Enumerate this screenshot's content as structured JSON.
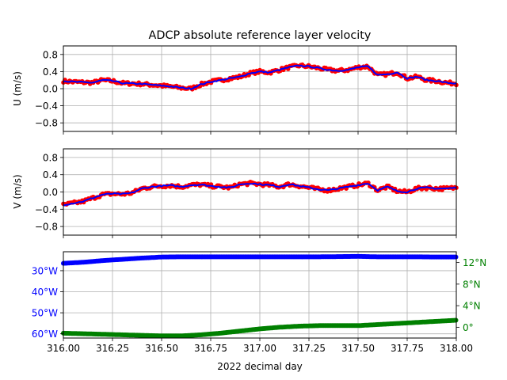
{
  "title": "ADCP absolute reference layer velocity",
  "colors": {
    "u_points": "#ff0000",
    "u_line": "#0000ff",
    "lon": "#0000ff",
    "lat": "#008000",
    "grid": "#b0b0b0"
  },
  "chart_data": [
    {
      "type": "line",
      "title": "ADCP absolute reference layer velocity",
      "ylabel": "U (m/s)",
      "xlabel": "",
      "xlim": [
        316.0,
        318.0
      ],
      "ylim": [
        -1.0,
        1.0
      ],
      "grid": true,
      "yticks": [
        -0.8,
        -0.4,
        0.0,
        0.4,
        0.8
      ],
      "ytick_labels": [
        "−0.8",
        "−0.4",
        "0.0",
        "0.4",
        "0.8"
      ],
      "x": [
        316.0,
        316.05,
        316.1,
        316.15,
        316.2,
        316.25,
        316.3,
        316.35,
        316.4,
        316.45,
        316.5,
        316.55,
        316.6,
        316.65,
        316.7,
        316.75,
        316.8,
        316.85,
        316.9,
        316.95,
        317.0,
        317.05,
        317.1,
        317.15,
        317.2,
        317.25,
        317.3,
        317.35,
        317.4,
        317.45,
        317.5,
        317.55,
        317.6,
        317.65,
        317.7,
        317.75,
        317.8,
        317.85,
        317.9,
        317.95,
        318.0
      ],
      "series": [
        {
          "values": [
            0.18,
            0.16,
            0.15,
            0.14,
            0.2,
            0.18,
            0.13,
            0.12,
            0.11,
            0.09,
            0.07,
            0.05,
            0.02,
            0.0,
            0.1,
            0.16,
            0.2,
            0.24,
            0.28,
            0.36,
            0.4,
            0.38,
            0.44,
            0.5,
            0.54,
            0.52,
            0.48,
            0.44,
            0.42,
            0.44,
            0.5,
            0.52,
            0.32,
            0.34,
            0.38,
            0.24,
            0.28,
            0.2,
            0.18,
            0.14,
            0.12
          ]
        }
      ]
    },
    {
      "type": "line",
      "ylabel": "V (m/s)",
      "xlabel": "",
      "xlim": [
        316.0,
        318.0
      ],
      "ylim": [
        -1.0,
        1.0
      ],
      "grid": true,
      "yticks": [
        -0.8,
        -0.4,
        0.0,
        0.4,
        0.8
      ],
      "ytick_labels": [
        "−0.8",
        "−0.4",
        "0.0",
        "0.4",
        "0.8"
      ],
      "x": [
        316.0,
        316.05,
        316.1,
        316.15,
        316.2,
        316.25,
        316.3,
        316.35,
        316.4,
        316.45,
        316.5,
        316.55,
        316.6,
        316.65,
        316.7,
        316.75,
        316.8,
        316.85,
        316.9,
        316.95,
        317.0,
        317.05,
        317.1,
        317.15,
        317.2,
        317.25,
        317.3,
        317.35,
        317.4,
        317.45,
        317.5,
        317.55,
        317.6,
        317.65,
        317.7,
        317.75,
        317.8,
        317.85,
        317.9,
        317.95,
        318.0
      ],
      "series": [
        {
          "values": [
            -0.3,
            -0.26,
            -0.22,
            -0.14,
            -0.06,
            -0.04,
            -0.05,
            -0.02,
            0.08,
            0.12,
            0.14,
            0.15,
            0.12,
            0.16,
            0.17,
            0.14,
            0.12,
            0.1,
            0.18,
            0.2,
            0.18,
            0.16,
            0.12,
            0.18,
            0.14,
            0.1,
            0.06,
            0.04,
            0.08,
            0.12,
            0.16,
            0.2,
            0.04,
            0.12,
            0.02,
            0.0,
            0.08,
            0.1,
            0.08,
            0.08,
            0.1
          ]
        }
      ]
    },
    {
      "type": "line",
      "xlabel": "2022 decimal day",
      "xlim": [
        316.0,
        318.0
      ],
      "grid": true,
      "xticks": [
        316.0,
        316.25,
        316.5,
        316.75,
        317.0,
        317.25,
        317.5,
        317.75,
        318.0
      ],
      "xtick_labels": [
        "316.00",
        "316.25",
        "316.50",
        "316.75",
        "317.00",
        "317.25",
        "317.50",
        "317.75",
        "318.00"
      ],
      "left_axis": {
        "quantity": "longitude",
        "ylim": [
          -62.0,
          -21.0
        ],
        "yticks": [
          -60,
          -50,
          -40,
          -30
        ],
        "ytick_labels": [
          "60°W",
          "50°W",
          "40°W",
          "30°W"
        ]
      },
      "right_axis": {
        "quantity": "latitude",
        "ylim": [
          -2.0,
          14.0
        ],
        "yticks": [
          0,
          4,
          8,
          12
        ],
        "ytick_labels": [
          "0°",
          "4°N",
          "8°N",
          "12°N"
        ]
      },
      "x": [
        316.0,
        316.1,
        316.2,
        316.3,
        316.4,
        316.5,
        316.6,
        316.7,
        316.8,
        316.9,
        317.0,
        317.1,
        317.2,
        317.3,
        317.4,
        317.5,
        317.6,
        317.7,
        317.8,
        317.9,
        318.0
      ],
      "series": [
        {
          "axis": "left",
          "values": [
            -26.5,
            -26.0,
            -25.2,
            -24.6,
            -24.0,
            -23.5,
            -23.4,
            -23.4,
            -23.4,
            -23.4,
            -23.4,
            -23.4,
            -23.4,
            -23.4,
            -23.3,
            -23.2,
            -23.4,
            -23.4,
            -23.4,
            -23.5,
            -23.5
          ]
        },
        {
          "axis": "right",
          "values": [
            -1.1,
            -1.2,
            -1.3,
            -1.4,
            -1.5,
            -1.6,
            -1.6,
            -1.4,
            -1.1,
            -0.7,
            -0.3,
            0.0,
            0.2,
            0.3,
            0.3,
            0.3,
            0.5,
            0.7,
            0.9,
            1.1,
            1.3
          ]
        }
      ]
    }
  ]
}
